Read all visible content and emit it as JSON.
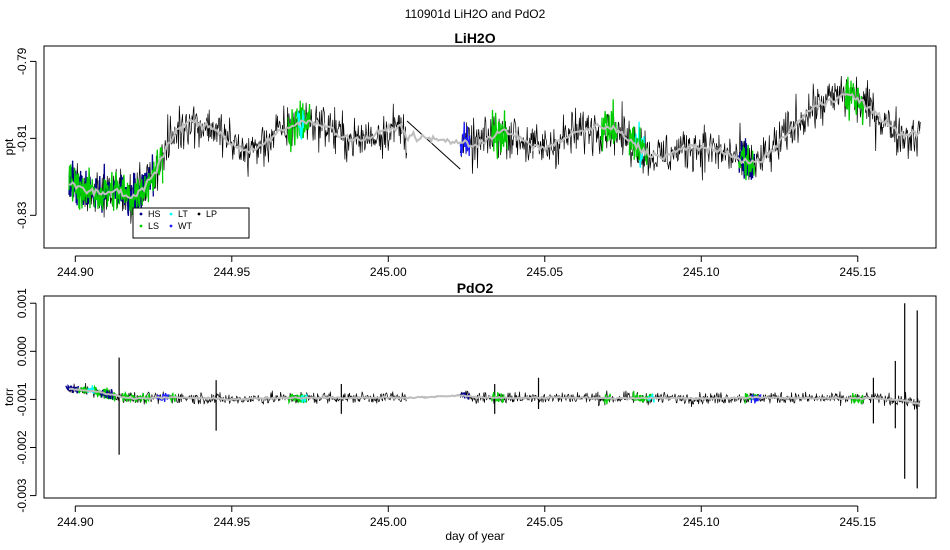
{
  "figure": {
    "title": "110901d   LiH2O and PdO2",
    "xlabel": "day of year"
  },
  "colors": {
    "raw": "#000000",
    "smooth": "#bebebe",
    "HS": "#00008b",
    "LS": "#00cd00",
    "LT": "#00ffff",
    "WT": "#1c1cff",
    "LP": "#000000"
  },
  "chart_data": [
    {
      "type": "line",
      "title": "LiH2O",
      "xlabel": "",
      "ylabel": "ppt",
      "xlim": [
        244.89,
        245.175
      ],
      "ylim": [
        -0.8385,
        -0.786
      ],
      "xticks": [
        244.9,
        244.95,
        245.0,
        245.05,
        245.1,
        245.15
      ],
      "xtick_labels": [
        "244.90",
        "244.95",
        "245.00",
        "245.05",
        "245.10",
        "245.15"
      ],
      "yticks": [
        -0.83,
        -0.81,
        -0.79
      ],
      "ytick_labels": [
        "-0.83",
        "-0.81",
        "-0.79"
      ],
      "legend": {
        "position": "bottom-left",
        "entries": [
          {
            "label": "HS",
            "color": "#00008b"
          },
          {
            "label": "LS",
            "color": "#00cd00"
          },
          {
            "label": "LT",
            "color": "#00ffff"
          },
          {
            "label": "WT",
            "color": "#1c1cff"
          },
          {
            "label": "LP",
            "color": "#000000"
          }
        ]
      },
      "gap": [
        245.006,
        245.023
      ],
      "series": [
        {
          "name": "raw",
          "noise": 0.003,
          "x": [
            244.898,
            244.903,
            244.908,
            244.913,
            244.918,
            244.922,
            244.925,
            244.928,
            244.932,
            244.936,
            244.94,
            244.945,
            244.95,
            244.955,
            244.96,
            244.965,
            244.97,
            244.975,
            244.98,
            244.985,
            244.99,
            244.995,
            245.0,
            245.004,
            245.006,
            245.023,
            245.027,
            245.032,
            245.037,
            245.042,
            245.047,
            245.052,
            245.057,
            245.062,
            245.067,
            245.072,
            245.077,
            245.082,
            245.087,
            245.092,
            245.097,
            245.102,
            245.107,
            245.112,
            245.116,
            245.12,
            245.125,
            245.13,
            245.135,
            245.14,
            245.145,
            245.148,
            245.152,
            245.156,
            245.16,
            245.165,
            245.17
          ],
          "values": [
            -0.8215,
            -0.8235,
            -0.8245,
            -0.8235,
            -0.8255,
            -0.8225,
            -0.8195,
            -0.8145,
            -0.8085,
            -0.8055,
            -0.8065,
            -0.8075,
            -0.8115,
            -0.8135,
            -0.8115,
            -0.8085,
            -0.8065,
            -0.8055,
            -0.8065,
            -0.8095,
            -0.8105,
            -0.8095,
            -0.8075,
            -0.807,
            -0.8095,
            -0.811,
            -0.812,
            -0.81,
            -0.808,
            -0.81,
            -0.8125,
            -0.812,
            -0.8095,
            -0.808,
            -0.807,
            -0.8075,
            -0.8105,
            -0.8135,
            -0.815,
            -0.8135,
            -0.812,
            -0.8125,
            -0.814,
            -0.815,
            -0.8165,
            -0.8155,
            -0.811,
            -0.8065,
            -0.8025,
            -0.8005,
            -0.7985,
            -0.799,
            -0.801,
            -0.804,
            -0.8065,
            -0.8095,
            -0.8085
          ]
        },
        {
          "name": "smooth",
          "x": [
            244.898,
            244.903,
            244.908,
            244.913,
            244.918,
            244.922,
            244.925,
            244.928,
            244.932,
            244.936,
            244.94,
            244.945,
            244.95,
            244.955,
            244.96,
            244.965,
            244.97,
            244.975,
            244.98,
            244.985,
            244.99,
            244.995,
            245.0,
            245.004,
            245.006,
            245.023,
            245.027,
            245.032,
            245.037,
            245.042,
            245.047,
            245.052,
            245.057,
            245.062,
            245.067,
            245.072,
            245.077,
            245.082,
            245.087,
            245.092,
            245.097,
            245.102,
            245.107,
            245.112,
            245.116,
            245.12,
            245.125,
            245.13,
            245.135,
            245.14,
            245.145,
            245.148,
            245.152,
            245.156,
            245.16,
            245.165,
            245.17
          ],
          "values": [
            -0.8215,
            -0.8235,
            -0.8245,
            -0.8235,
            -0.8255,
            -0.8225,
            -0.8195,
            -0.8145,
            -0.8085,
            -0.8055,
            -0.8065,
            -0.8075,
            -0.8115,
            -0.8135,
            -0.8115,
            -0.8085,
            -0.8065,
            -0.8055,
            -0.8065,
            -0.8095,
            -0.8105,
            -0.8095,
            -0.8075,
            -0.807,
            -0.8095,
            -0.811,
            -0.812,
            -0.81,
            -0.808,
            -0.81,
            -0.8125,
            -0.812,
            -0.8095,
            -0.808,
            -0.807,
            -0.8075,
            -0.8105,
            -0.8135,
            -0.815,
            -0.8135,
            -0.812,
            -0.8125,
            -0.814,
            -0.815,
            -0.8165,
            -0.8155,
            -0.811,
            -0.8065,
            -0.8025,
            -0.8005,
            -0.7985,
            -0.799,
            -0.801,
            -0.804,
            -0.8065,
            -0.8095,
            -0.8085
          ]
        }
      ],
      "flagged_segments": [
        {
          "flag": "HS",
          "x0": 244.898,
          "x1": 244.925
        },
        {
          "flag": "LS",
          "x0": 244.898,
          "x1": 244.928
        },
        {
          "flag": "LS",
          "x0": 244.968,
          "x1": 244.975
        },
        {
          "flag": "LT",
          "x0": 244.971,
          "x1": 244.973
        },
        {
          "flag": "WT",
          "x0": 245.023,
          "x1": 245.026
        },
        {
          "flag": "LS",
          "x0": 245.033,
          "x1": 245.038
        },
        {
          "flag": "LS",
          "x0": 245.068,
          "x1": 245.073
        },
        {
          "flag": "LT",
          "x0": 245.079,
          "x1": 245.082
        },
        {
          "flag": "LS",
          "x0": 245.077,
          "x1": 245.083
        },
        {
          "flag": "HS",
          "x0": 245.112,
          "x1": 245.117
        },
        {
          "flag": "LS",
          "x0": 245.112,
          "x1": 245.117
        },
        {
          "flag": "LS",
          "x0": 245.146,
          "x1": 245.152
        }
      ]
    },
    {
      "type": "line",
      "title": "PdO2",
      "xlabel": "day of year",
      "ylabel": "torr",
      "xlim": [
        244.89,
        245.175
      ],
      "ylim": [
        -0.00305,
        0.00115
      ],
      "xticks": [
        244.9,
        244.95,
        245.0,
        245.05,
        245.1,
        245.15
      ],
      "xtick_labels": [
        "244.90",
        "244.95",
        "245.00",
        "245.05",
        "245.10",
        "245.15"
      ],
      "yticks": [
        -0.003,
        -0.002,
        -0.001,
        0.0,
        0.001
      ],
      "ytick_labels": [
        "-0.003",
        "-0.002",
        "-0.001",
        "0.000",
        "0.001"
      ],
      "gap": [
        245.006,
        245.023
      ],
      "series": [
        {
          "name": "raw",
          "noise": 6e-05,
          "x": [
            244.898,
            244.905,
            244.91,
            244.915,
            244.92,
            244.93,
            244.94,
            244.95,
            244.96,
            244.97,
            244.98,
            244.99,
            245.0,
            245.006,
            245.023,
            245.03,
            245.04,
            245.05,
            245.06,
            245.07,
            245.08,
            245.09,
            245.1,
            245.11,
            245.12,
            245.13,
            245.14,
            245.15,
            245.155,
            245.16,
            245.165,
            245.17
          ],
          "values": [
            -0.00078,
            -0.00082,
            -0.00088,
            -0.00095,
            -0.00098,
            -0.00096,
            -0.00097,
            -0.001,
            -0.00098,
            -0.00097,
            -0.00096,
            -0.00097,
            -0.00096,
            -0.00097,
            -0.00092,
            -0.00096,
            -0.00097,
            -0.00096,
            -0.00096,
            -0.00098,
            -0.00097,
            -0.00097,
            -0.00098,
            -0.00097,
            -0.00096,
            -0.00097,
            -0.00098,
            -0.00098,
            -0.00097,
            -0.001,
            -0.00102,
            -0.0011
          ]
        },
        {
          "name": "smooth",
          "x": [
            244.898,
            244.905,
            244.91,
            244.915,
            244.92,
            244.93,
            244.94,
            244.95,
            244.96,
            244.97,
            244.98,
            244.99,
            245.0,
            245.006,
            245.023,
            245.03,
            245.04,
            245.05,
            245.06,
            245.07,
            245.08,
            245.09,
            245.1,
            245.11,
            245.12,
            245.13,
            245.14,
            245.15,
            245.155,
            245.16,
            245.165,
            245.17
          ],
          "values": [
            -0.00078,
            -0.00082,
            -0.00088,
            -0.00095,
            -0.00098,
            -0.00096,
            -0.00097,
            -0.001,
            -0.00098,
            -0.00097,
            -0.00096,
            -0.00097,
            -0.00096,
            -0.00097,
            -0.00092,
            -0.00096,
            -0.00097,
            -0.00096,
            -0.00096,
            -0.00098,
            -0.00097,
            -0.00097,
            -0.00098,
            -0.00097,
            -0.00096,
            -0.00097,
            -0.00098,
            -0.00098,
            -0.00097,
            -0.001,
            -0.00102,
            -0.0011
          ]
        }
      ],
      "spikes": [
        {
          "x": 244.914,
          "min": -0.00215,
          "max": -0.00013
        },
        {
          "x": 244.945,
          "min": -0.00165,
          "max": -0.0006
        },
        {
          "x": 244.985,
          "min": -0.0013,
          "max": -0.00068
        },
        {
          "x": 245.034,
          "min": -0.0013,
          "max": -0.00068
        },
        {
          "x": 245.048,
          "min": -0.0012,
          "max": -0.00055
        },
        {
          "x": 245.155,
          "min": -0.0015,
          "max": -0.00055
        },
        {
          "x": 245.162,
          "min": -0.0016,
          "max": -0.0002
        },
        {
          "x": 245.165,
          "min": -0.00265,
          "max": 0.001
        },
        {
          "x": 245.169,
          "min": -0.00285,
          "max": 0.00085
        }
      ],
      "flagged_segments": [
        {
          "flag": "HS",
          "x0": 244.897,
          "x1": 244.901
        },
        {
          "flag": "LS",
          "x0": 244.901,
          "x1": 244.904
        },
        {
          "flag": "LT",
          "x0": 244.904,
          "x1": 244.906
        },
        {
          "flag": "LS",
          "x0": 244.906,
          "x1": 244.913
        },
        {
          "flag": "HS",
          "x0": 244.908,
          "x1": 244.912
        },
        {
          "flag": "LS",
          "x0": 244.915,
          "x1": 244.924
        },
        {
          "flag": "WT",
          "x0": 244.926,
          "x1": 244.93
        },
        {
          "flag": "LS",
          "x0": 244.93,
          "x1": 244.932
        },
        {
          "flag": "LS",
          "x0": 244.968,
          "x1": 244.974
        },
        {
          "flag": "LT",
          "x0": 244.972,
          "x1": 244.974
        },
        {
          "flag": "HS",
          "x0": 245.023,
          "x1": 245.026
        },
        {
          "flag": "LS",
          "x0": 245.033,
          "x1": 245.037
        },
        {
          "flag": "LS",
          "x0": 245.069,
          "x1": 245.071
        },
        {
          "flag": "LS",
          "x0": 245.078,
          "x1": 245.084
        },
        {
          "flag": "LT",
          "x0": 245.083,
          "x1": 245.085
        },
        {
          "flag": "LS",
          "x0": 245.114,
          "x1": 245.118
        },
        {
          "flag": "WT",
          "x0": 245.116,
          "x1": 245.119
        },
        {
          "flag": "LS",
          "x0": 245.148,
          "x1": 245.152
        }
      ]
    }
  ]
}
